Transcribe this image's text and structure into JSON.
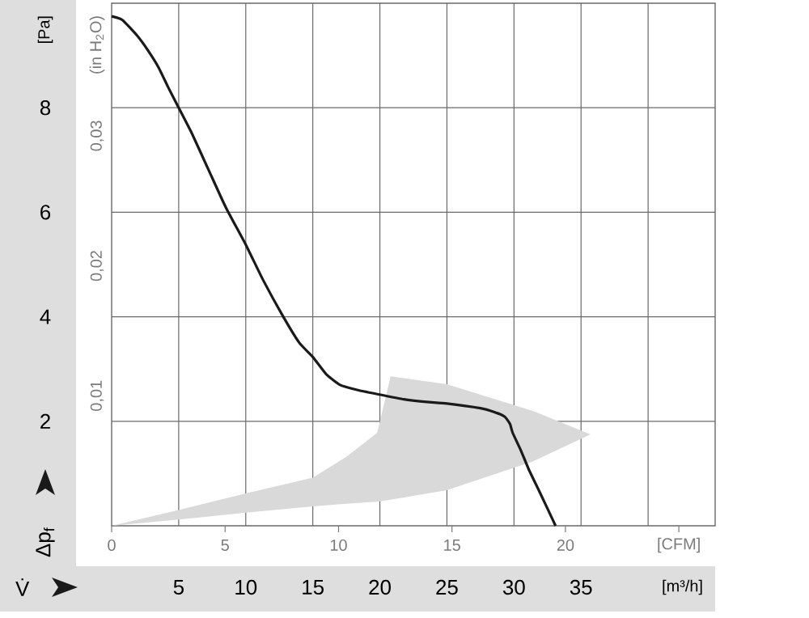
{
  "chart_data": {
    "type": "line",
    "ylabel": "[Pa]",
    "xlabel": "[m³/h]",
    "y2label": "(in H$_{2}$O)",
    "annotations": [
      "Δp$_{f}$",
      "V̇"
    ],
    "xlim": [
      0,
      45
    ],
    "xticks": [
      5,
      10,
      15,
      20,
      25,
      30,
      35,
      {
        "value": 40,
        "label": null
      }
    ],
    "x2lim": [
      0,
      26.6
    ],
    "x2ticks": [
      0,
      5,
      10,
      15,
      20,
      {
        "value": 25,
        "label": "[CFM]"
      }
    ],
    "ylim": [
      0,
      10
    ],
    "yticks": [
      2,
      4,
      6,
      8
    ],
    "y2lim": [
      0,
      0.0402
    ],
    "y2ticks": [
      {
        "value": 0.01,
        "label": "0,01"
      },
      {
        "value": 0.02,
        "label": "0,02"
      },
      {
        "value": 0.03,
        "label": "0,03"
      }
    ],
    "grid": true,
    "series": [
      {
        "type": "line",
        "color": "#d9d9d9",
        "x": [
          0,
          5,
          10,
          15,
          17.5,
          19.8,
          20.8,
          25,
          31.4,
          35.7
        ],
        "values": [
          null,
          null,
          null,
          null,
          null,
          null,
          null,
          null,
          null,
          null
        ],
        "lower": [
          0,
          0.12,
          0.25,
          0.37,
          0.42,
          0.46,
          0.5,
          0.68,
          1.23,
          1.75
        ],
        "upper": [
          0,
          0.3,
          0.62,
          0.92,
          1.32,
          1.78,
          2.86,
          2.71,
          2.2,
          1.75
        ]
      },
      {
        "type": "line",
        "color": "#1a1a1a",
        "x": [
          0,
          0.8,
          1.9,
          2.7,
          3.5,
          4.2,
          5,
          6,
          7.3,
          8.5,
          10,
          11.3,
          12.8,
          14,
          15,
          16,
          17,
          18.3,
          19.8,
          21.8,
          23.5,
          25,
          27.5,
          28.5,
          29.3,
          29.7,
          29.9,
          30.5,
          31.1,
          32,
          33.1
        ],
        "values": [
          9.75,
          9.68,
          9.38,
          9.1,
          8.77,
          8.4,
          8.0,
          7.5,
          6.77,
          6.1,
          5.38,
          4.7,
          4.0,
          3.5,
          3.23,
          2.9,
          2.7,
          2.6,
          2.52,
          2.42,
          2.37,
          2.34,
          2.25,
          2.18,
          2.09,
          1.95,
          1.78,
          1.45,
          1.08,
          0.6,
          0
        ]
      }
    ]
  }
}
